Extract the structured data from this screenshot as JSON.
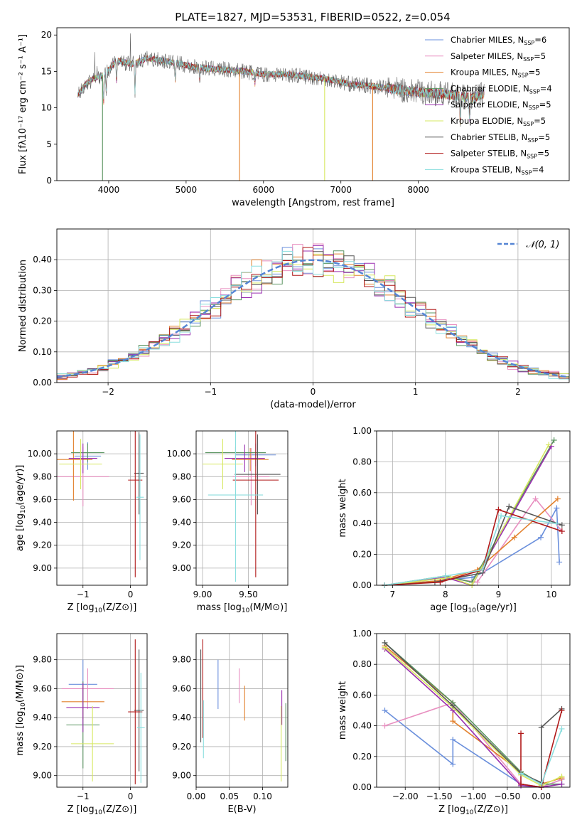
{
  "title": "PLATE=1827, MJD=53531, FIBERID=0522, z=0.054",
  "colors": {
    "c0": "#6a8fdc",
    "c1": "#e88fc0",
    "c2": "#e2802c",
    "c3": "#5a9460",
    "c4": "#9a2fb0",
    "c5": "#d6e860",
    "c6": "#555555",
    "c7": "#b01818",
    "c8": "#8adede"
  },
  "chart_data": [
    {
      "id": "spectrum",
      "type": "line",
      "xlabel": "wavelength [Angstrom, rest frame]",
      "ylabel": "Flux [fλ10⁻¹⁷ erg cm⁻² s⁻¹ A⁻¹]",
      "xlim": [
        3330,
        9950
      ],
      "ylim": [
        0,
        21
      ],
      "xticks": [
        4000,
        5000,
        6000,
        7000,
        8000
      ],
      "yticks": [
        0,
        5,
        10,
        15,
        20
      ],
      "legend_position": "top-right",
      "series": [
        {
          "name": "Chabrier MILES, N_SSP=6",
          "color_key": "c0"
        },
        {
          "name": "Salpeter MILES, N_SSP=5",
          "color_key": "c1"
        },
        {
          "name": "Kroupa MILES, N_SSP=5",
          "color_key": "c2"
        },
        {
          "name": "Chabrier ELODIE, N_SSP=4",
          "color_key": "c3"
        },
        {
          "name": "Salpeter ELODIE, N_SSP=5",
          "color_key": "c4"
        },
        {
          "name": "Kroupa ELODIE, N_SSP=5",
          "color_key": "c5"
        },
        {
          "name": "Chabrier STELIB, N_SSP=5",
          "color_key": "c6"
        },
        {
          "name": "Salpeter STELIB, N_SSP=5",
          "color_key": "c7"
        },
        {
          "name": "Kroupa STELIB, N_SSP=4",
          "color_key": "c8"
        }
      ],
      "continuum": [
        [
          3600,
          11.8
        ],
        [
          3700,
          13.2
        ],
        [
          3800,
          14.0
        ],
        [
          3950,
          14.6
        ],
        [
          4100,
          16.5
        ],
        [
          4300,
          16.0
        ],
        [
          4500,
          16.8
        ],
        [
          4800,
          16.3
        ],
        [
          5100,
          15.6
        ],
        [
          5400,
          15.3
        ],
        [
          5700,
          15.1
        ],
        [
          6000,
          14.6
        ],
        [
          6300,
          14.6
        ],
        [
          6560,
          14.3
        ],
        [
          6800,
          14.0
        ],
        [
          7100,
          13.3
        ],
        [
          7400,
          13.0
        ],
        [
          7800,
          12.4
        ],
        [
          8200,
          12.0
        ],
        [
          8500,
          11.7
        ],
        [
          8700,
          11.3
        ],
        [
          8850,
          12.0
        ]
      ],
      "drops": [
        [
          3920,
          0,
          "c3"
        ],
        [
          5690,
          0,
          "c2"
        ],
        [
          6790,
          0,
          "c5"
        ],
        [
          7410,
          0,
          "c2"
        ]
      ]
    },
    {
      "id": "histogram",
      "type": "bar",
      "xlabel": "(data-model)/error",
      "ylabel": "Normed distribution",
      "xlim": [
        -2.5,
        2.5
      ],
      "ylim": [
        0,
        0.5
      ],
      "xticks": [
        -2,
        -1,
        0,
        1,
        2
      ],
      "yticks": [
        0.0,
        0.1,
        0.2,
        0.3,
        0.4
      ],
      "legend": "N(0,1)",
      "legend_position": "top-right",
      "bin_width": 0.1,
      "curve_color": "#5585d4"
    },
    {
      "id": "age_vs_Z",
      "type": "scatter",
      "xlabel": "Z [log10(Z/Z⊙)]",
      "ylabel": "age  [log10(age/yr)]",
      "xlim": [
        -1.55,
        0.35
      ],
      "ylim": [
        8.85,
        10.2
      ],
      "xticks": [
        -1,
        0
      ],
      "yticks": [
        9.0,
        9.2,
        9.4,
        9.6,
        9.8,
        10.0
      ],
      "points": [
        {
          "c": "c0",
          "x": -0.9,
          "xe": 0.28,
          "y": 9.98,
          "ye": 0.12
        },
        {
          "c": "c1",
          "x": -1.0,
          "xe": 0.55,
          "y": 9.8,
          "ye": 0.26
        },
        {
          "c": "c2",
          "x": -1.2,
          "xe": 0.4,
          "y": 9.95,
          "ye": 0.36
        },
        {
          "c": "c3",
          "x": -0.9,
          "xe": 0.35,
          "y": 10.01,
          "ye": 0.08
        },
        {
          "c": "c4",
          "x": -1.0,
          "xe": 0.3,
          "y": 9.96,
          "ye": 0.13
        },
        {
          "c": "c5",
          "x": -1.05,
          "xe": 0.45,
          "y": 9.91,
          "ye": 0.22
        },
        {
          "c": "c6",
          "x": 0.18,
          "xe": 0.1,
          "y": 9.83,
          "ye": 0.36
        },
        {
          "c": "c7",
          "x": 0.1,
          "xe": 0.15,
          "y": 9.77,
          "ye": 0.85
        },
        {
          "c": "c8",
          "x": 0.2,
          "xe": 0.08,
          "y": 9.62,
          "ye": 0.55
        }
      ]
    },
    {
      "id": "age_vs_mass",
      "type": "scatter",
      "xlabel": "mass [log10(M/M⊙)]",
      "ylabel": "",
      "xlim": [
        8.93,
        9.93
      ],
      "ylim": [
        8.85,
        10.2
      ],
      "xticks": [
        9.0,
        9.5
      ],
      "yticks": [
        9.0,
        9.2,
        9.4,
        9.6,
        9.8,
        10.0
      ],
      "points": [
        {
          "c": "c0",
          "x": 9.58,
          "xe": 0.22,
          "y": 9.99,
          "ye": 0.1
        },
        {
          "c": "c1",
          "x": 9.53,
          "xe": 0.2,
          "y": 9.8,
          "ye": 0.25
        },
        {
          "c": "c2",
          "x": 9.52,
          "xe": 0.2,
          "y": 9.95,
          "ye": 0.1
        },
        {
          "c": "c3",
          "x": 9.36,
          "xe": 0.33,
          "y": 10.01,
          "ye": 0.05
        },
        {
          "c": "c4",
          "x": 9.46,
          "xe": 0.22,
          "y": 9.96,
          "ye": 0.12
        },
        {
          "c": "c5",
          "x": 9.22,
          "xe": 0.22,
          "y": 9.91,
          "ye": 0.22
        },
        {
          "c": "c6",
          "x": 9.6,
          "xe": 0.25,
          "y": 9.82,
          "ye": 0.35
        },
        {
          "c": "c7",
          "x": 9.58,
          "xe": 0.25,
          "y": 9.77,
          "ye": 0.85
        },
        {
          "c": "c8",
          "x": 9.36,
          "xe": 0.3,
          "y": 9.64,
          "ye": 0.76
        }
      ]
    },
    {
      "id": "massweight_vs_age",
      "type": "line",
      "xlabel": "age  [log10(age/yr)]",
      "ylabel": "mass weight",
      "xlim": [
        6.7,
        10.35
      ],
      "ylim": [
        0,
        1.0
      ],
      "xticks": [
        7,
        8,
        9,
        10
      ],
      "yticks": [
        0.0,
        0.2,
        0.4,
        0.6,
        0.8,
        1.0
      ],
      "series": [
        {
          "c": "c0",
          "pts": [
            [
              6.85,
              0.0
            ],
            [
              7.9,
              0.03
            ],
            [
              8.5,
              0.05
            ],
            [
              8.7,
              0.08
            ],
            [
              9.8,
              0.31
            ],
            [
              10.1,
              0.5
            ],
            [
              10.15,
              0.15
            ]
          ]
        },
        {
          "c": "c1",
          "pts": [
            [
              6.85,
              0.0
            ],
            [
              8.0,
              0.05
            ],
            [
              8.6,
              0.02
            ],
            [
              9.7,
              0.56
            ],
            [
              10.2,
              0.35
            ]
          ]
        },
        {
          "c": "c2",
          "pts": [
            [
              6.85,
              0.0
            ],
            [
              7.9,
              0.03
            ],
            [
              8.6,
              0.1
            ],
            [
              9.3,
              0.31
            ],
            [
              10.12,
              0.56
            ]
          ]
        },
        {
          "c": "c3",
          "pts": [
            [
              6.85,
              0.0
            ],
            [
              8.0,
              0.06
            ],
            [
              8.5,
              0.02
            ],
            [
              10.05,
              0.94
            ]
          ]
        },
        {
          "c": "c4",
          "pts": [
            [
              6.85,
              0.0
            ],
            [
              8.0,
              0.05
            ],
            [
              8.5,
              0.0
            ],
            [
              10.0,
              0.9
            ]
          ]
        },
        {
          "c": "c5",
          "pts": [
            [
              6.85,
              0.0
            ],
            [
              8.1,
              0.05
            ],
            [
              8.5,
              0.0
            ],
            [
              9.95,
              0.91
            ]
          ]
        },
        {
          "c": "c6",
          "pts": [
            [
              6.85,
              0.0
            ],
            [
              7.8,
              0.02
            ],
            [
              8.7,
              0.08
            ],
            [
              9.2,
              0.51
            ],
            [
              10.2,
              0.39
            ]
          ]
        },
        {
          "c": "c7",
          "pts": [
            [
              6.85,
              0.0
            ],
            [
              7.9,
              0.02
            ],
            [
              8.7,
              0.1
            ],
            [
              9.0,
              0.49
            ],
            [
              10.2,
              0.35
            ]
          ]
        },
        {
          "c": "c8",
          "pts": [
            [
              6.85,
              0.0
            ],
            [
              8.0,
              0.06
            ],
            [
              8.7,
              0.1
            ],
            [
              9.05,
              0.45
            ],
            [
              10.1,
              0.4
            ]
          ]
        }
      ]
    },
    {
      "id": "mass_vs_Z",
      "type": "scatter",
      "xlabel": "Z [log10(Z/Z⊙)]",
      "ylabel": "mass [log10(M/M⊙)]",
      "xlim": [
        -1.55,
        0.35
      ],
      "ylim": [
        8.92,
        9.98
      ],
      "xticks": [
        -1,
        0
      ],
      "yticks": [
        9.0,
        9.2,
        9.4,
        9.6,
        9.8
      ],
      "points": [
        {
          "c": "c0",
          "x": -1.0,
          "xe": 0.3,
          "y": 9.63,
          "ye": 0.17
        },
        {
          "c": "c1",
          "x": -0.9,
          "xe": 0.55,
          "y": 9.6,
          "ye": 0.14
        },
        {
          "c": "c2",
          "x": -1.0,
          "xe": 0.45,
          "y": 9.51,
          "ye": 0.12
        },
        {
          "c": "c3",
          "x": -1.0,
          "xe": 0.35,
          "y": 9.35,
          "ye": 0.3
        },
        {
          "c": "c4",
          "x": -1.0,
          "xe": 0.35,
          "y": 9.47,
          "ye": 0.17
        },
        {
          "c": "c5",
          "x": -0.8,
          "xe": 0.45,
          "y": 9.22,
          "ye": 0.26
        },
        {
          "c": "c6",
          "x": 0.18,
          "xe": 0.1,
          "y": 9.45,
          "ye": 0.42
        },
        {
          "c": "c7",
          "x": 0.1,
          "xe": 0.15,
          "y": 9.44,
          "ye": 0.5
        },
        {
          "c": "c8",
          "x": 0.22,
          "xe": 0.08,
          "y": 9.33,
          "ye": 0.38
        }
      ]
    },
    {
      "id": "mass_vs_EBV",
      "type": "scatter",
      "xlabel": "E(B-V)",
      "ylabel": "",
      "xlim": [
        0.0,
        0.138
      ],
      "ylim": [
        8.92,
        9.98
      ],
      "xticks": [
        0.0,
        0.05,
        0.1
      ],
      "yticks": [
        9.0,
        9.2,
        9.4,
        9.6,
        9.8
      ],
      "points": [
        {
          "c": "c0",
          "x": 0.033,
          "xe": 0,
          "y": 9.63,
          "ye": 0.17
        },
        {
          "c": "c1",
          "x": 0.065,
          "xe": 0,
          "y": 9.62,
          "ye": 0.12
        },
        {
          "c": "c2",
          "x": 0.073,
          "xe": 0,
          "y": 9.5,
          "ye": 0.12
        },
        {
          "c": "c3",
          "x": 0.135,
          "xe": 0,
          "y": 9.3,
          "ye": 0.2
        },
        {
          "c": "c4",
          "x": 0.129,
          "xe": 0,
          "y": 9.47,
          "ye": 0.12
        },
        {
          "c": "c5",
          "x": 0.128,
          "xe": 0,
          "y": 9.22,
          "ye": 0.26
        },
        {
          "c": "c6",
          "x": 0.007,
          "xe": 0,
          "y": 9.55,
          "ye": 0.32
        },
        {
          "c": "c7",
          "x": 0.01,
          "xe": 0,
          "y": 9.6,
          "ye": 0.34
        },
        {
          "c": "c8",
          "x": 0.011,
          "xe": 0,
          "y": 9.32,
          "ye": 0.2
        }
      ]
    },
    {
      "id": "massweight_vs_Z",
      "type": "line",
      "xlabel": "Z [log10(Z/Z⊙)]",
      "ylabel": "mass weight",
      "xlim": [
        -2.42,
        0.42
      ],
      "ylim": [
        0,
        1.0
      ],
      "xticks": [
        -2.0,
        -1.5,
        -1.0,
        -0.5,
        0.0
      ],
      "yticks": [
        0.0,
        0.2,
        0.4,
        0.6,
        0.8,
        1.0
      ],
      "series": [
        {
          "c": "c0",
          "pts": [
            [
              -2.3,
              0.5
            ],
            [
              -1.3,
              0.15
            ],
            [
              -1.3,
              0.31
            ],
            [
              -0.3,
              0.02
            ],
            [
              0.0,
              0.0
            ],
            [
              0.3,
              0.05
            ]
          ]
        },
        {
          "c": "c1",
          "pts": [
            [
              -2.3,
              0.4
            ],
            [
              -1.3,
              0.55
            ],
            [
              -0.3,
              0.02
            ],
            [
              0.0,
              0.0
            ],
            [
              0.3,
              0.05
            ]
          ]
        },
        {
          "c": "c2",
          "pts": [
            [
              -2.3,
              0.92
            ],
            [
              -1.3,
              0.55
            ],
            [
              -1.3,
              0.43
            ],
            [
              -0.3,
              0.1
            ],
            [
              0.0,
              0.02
            ],
            [
              0.3,
              0.06
            ]
          ]
        },
        {
          "c": "c3",
          "pts": [
            [
              -2.3,
              0.94
            ],
            [
              -1.3,
              0.55
            ],
            [
              -0.3,
              0.1
            ],
            [
              0.0,
              0.02
            ],
            [
              0.3,
              0.02
            ]
          ]
        },
        {
          "c": "c4",
          "pts": [
            [
              -2.3,
              0.9
            ],
            [
              -1.3,
              0.5
            ],
            [
              -0.3,
              0.01
            ],
            [
              0.0,
              0.0
            ],
            [
              0.3,
              0.02
            ]
          ]
        },
        {
          "c": "c5",
          "pts": [
            [
              -2.3,
              0.91
            ],
            [
              -1.3,
              0.52
            ],
            [
              -0.3,
              0.08
            ],
            [
              0.0,
              0.01
            ],
            [
              0.3,
              0.07
            ]
          ]
        },
        {
          "c": "c6",
          "pts": [
            [
              -2.3,
              0.94
            ],
            [
              -1.3,
              0.53
            ],
            [
              -0.3,
              0.09
            ],
            [
              0.0,
              0.03
            ],
            [
              0.0,
              0.39
            ],
            [
              0.3,
              0.51
            ]
          ]
        },
        {
          "c": "c7",
          "pts": [
            [
              -0.3,
              0.35
            ],
            [
              -0.3,
              0.02
            ],
            [
              0.0,
              0.0
            ],
            [
              0.3,
              0.5
            ]
          ]
        },
        {
          "c": "c8",
          "pts": [
            [
              -0.3,
              0.09
            ],
            [
              0.0,
              0.02
            ],
            [
              0.3,
              0.38
            ]
          ]
        }
      ]
    }
  ]
}
